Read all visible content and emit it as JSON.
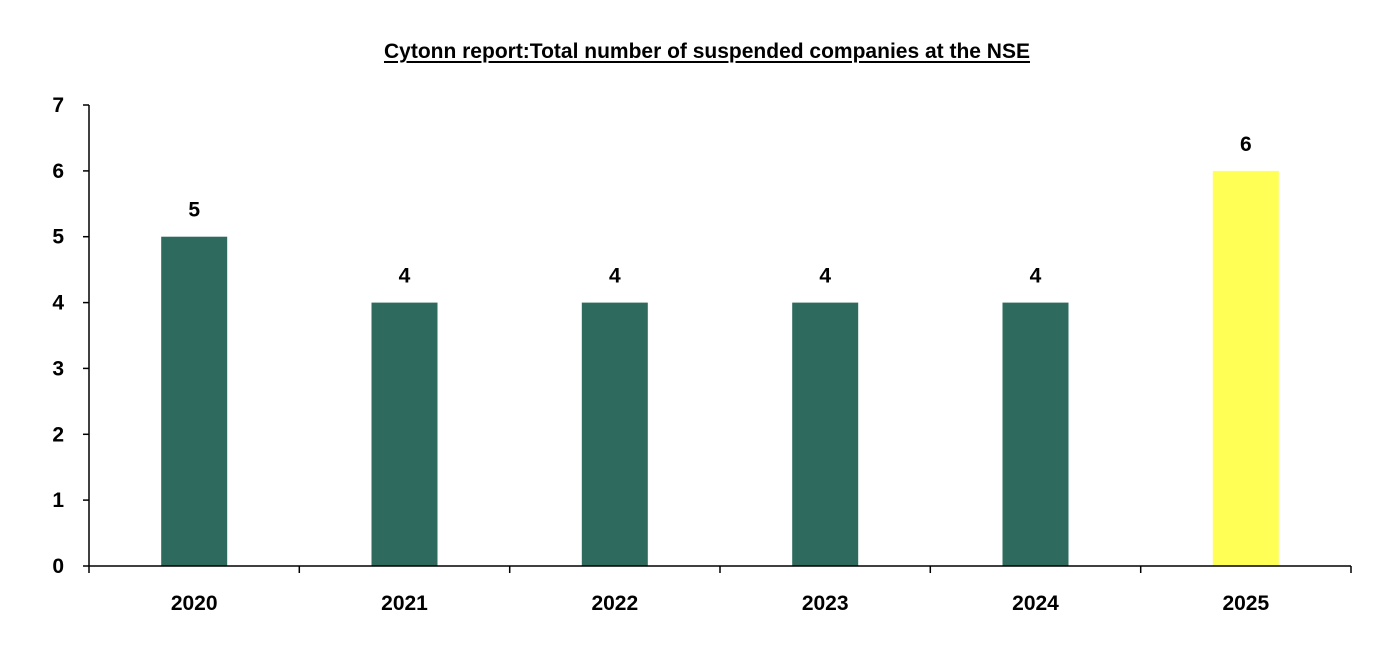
{
  "chart_data": {
    "type": "bar",
    "title": "Cytonn report:Total number of suspended companies at the NSE",
    "xlabel": "",
    "ylabel": "",
    "categories": [
      "2020",
      "2021",
      "2022",
      "2023",
      "2024",
      "2025"
    ],
    "values": [
      5,
      4,
      4,
      4,
      4,
      6
    ],
    "data_labels": [
      "5",
      "4",
      "4",
      "4",
      "4",
      "6"
    ],
    "ylim": [
      0,
      7
    ],
    "yticks": [
      0,
      1,
      2,
      3,
      4,
      5,
      6,
      7
    ],
    "grid": false,
    "legend": "none",
    "colors": {
      "default_bar": "#2e6b5e",
      "highlight_bar": "#ffff55",
      "highlight_category": "2025",
      "axis": "#000000",
      "text": "#000000"
    }
  }
}
